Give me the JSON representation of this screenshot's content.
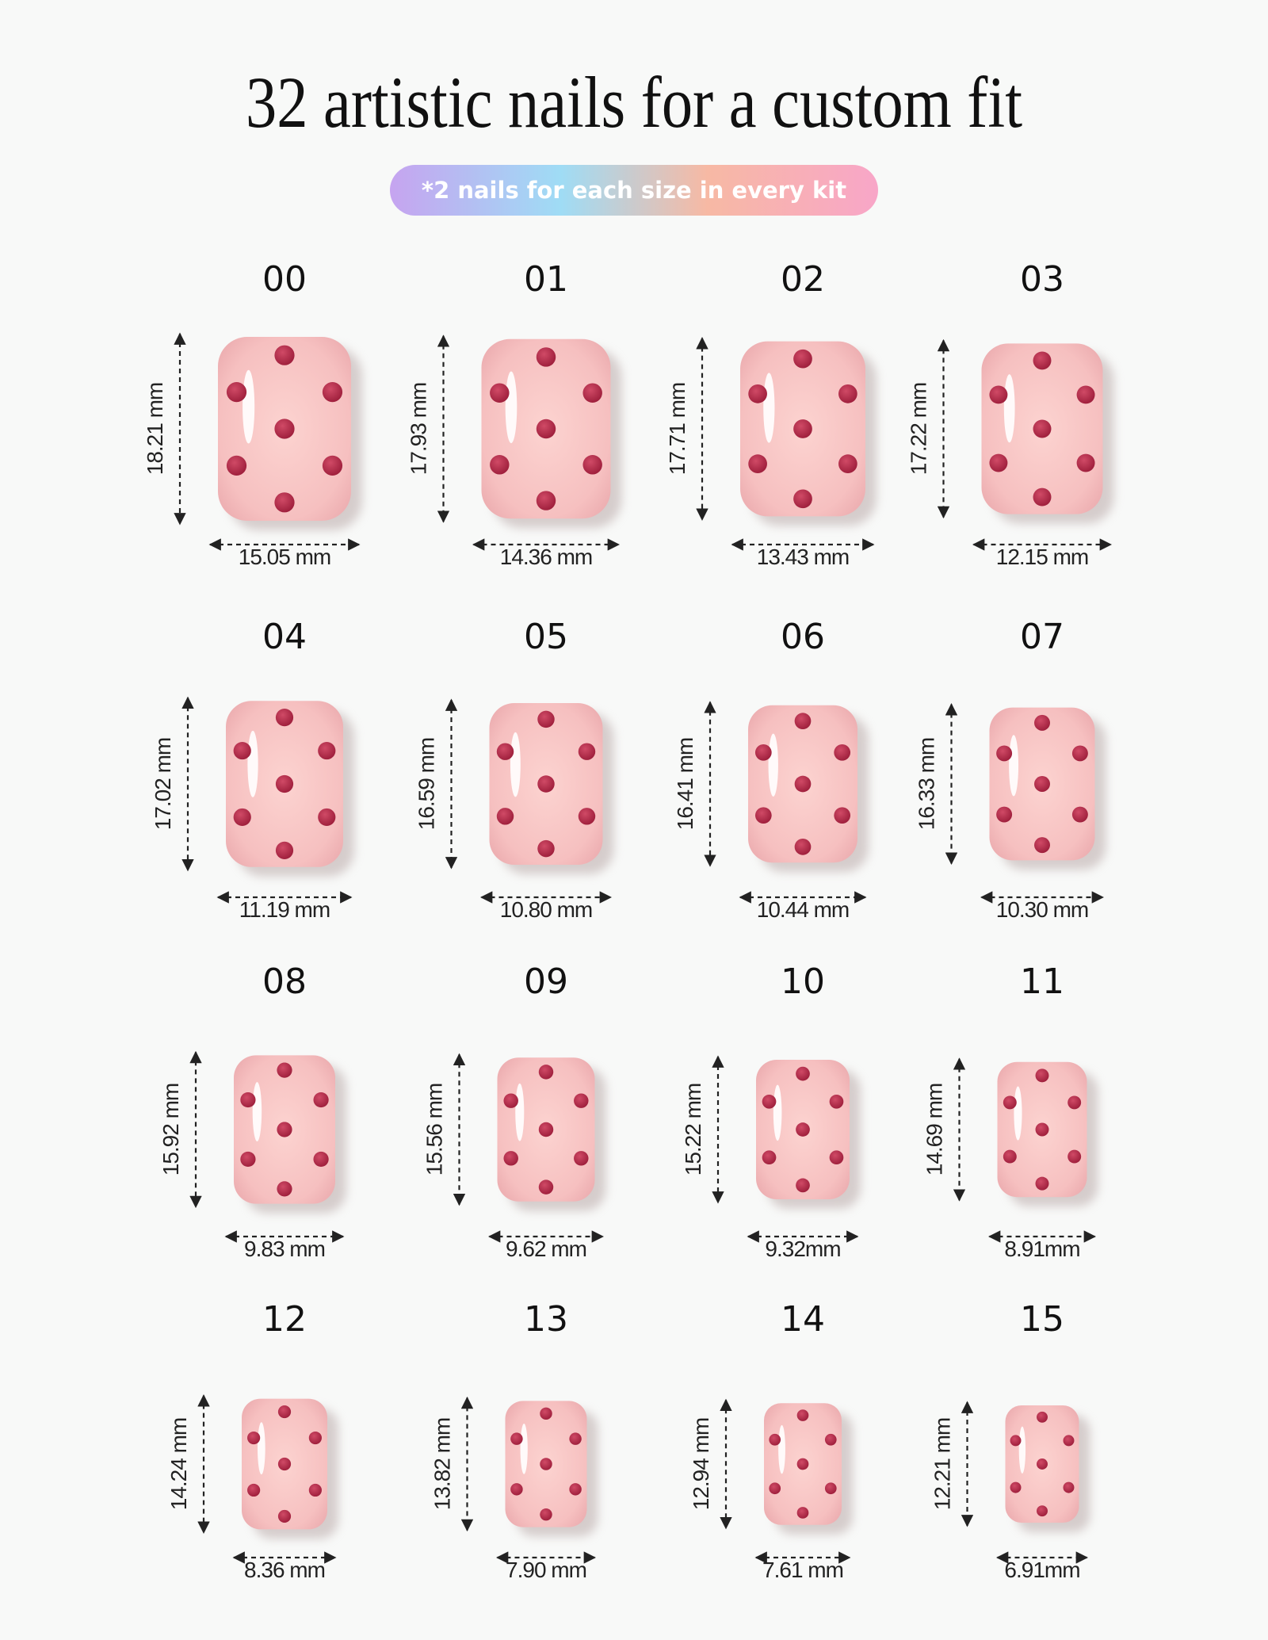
{
  "title": "32 artistic nails for a custom fit",
  "note": "*2 nails for each size in every kit",
  "nails": [
    {
      "size": "00",
      "height": "18.21 mm",
      "width": "15.05 mm"
    },
    {
      "size": "01",
      "height": "17.93 mm",
      "width": "14.36 mm"
    },
    {
      "size": "02",
      "height": "17.71 mm",
      "width": "13.43 mm"
    },
    {
      "size": "03",
      "height": "17.22 mm",
      "width": "12.15 mm"
    },
    {
      "size": "04",
      "height": "17.02 mm",
      "width": "11.19 mm"
    },
    {
      "size": "05",
      "height": "16.59 mm",
      "width": "10.80 mm"
    },
    {
      "size": "06",
      "height": "16.41 mm",
      "width": "10.44 mm"
    },
    {
      "size": "07",
      "height": "16.33 mm",
      "width": "10.30 mm"
    },
    {
      "size": "08",
      "height": "15.92 mm",
      "width": "9.83 mm"
    },
    {
      "size": "09",
      "height": "15.56 mm",
      "width": "9.62 mm"
    },
    {
      "size": "10",
      "height": "15.22 mm",
      "width": "9.32mm"
    },
    {
      "size": "11",
      "height": "14.69 mm",
      "width": "8.91mm"
    },
    {
      "size": "12",
      "height": "14.24 mm",
      "width": "8.36 mm"
    },
    {
      "size": "13",
      "height": "13.82 mm",
      "width": "7.90 mm"
    },
    {
      "size": "14",
      "height": "12.94 mm",
      "width": "7.61 mm"
    },
    {
      "size": "15",
      "height": "12.21 mm",
      "width": "6.91mm"
    }
  ]
}
